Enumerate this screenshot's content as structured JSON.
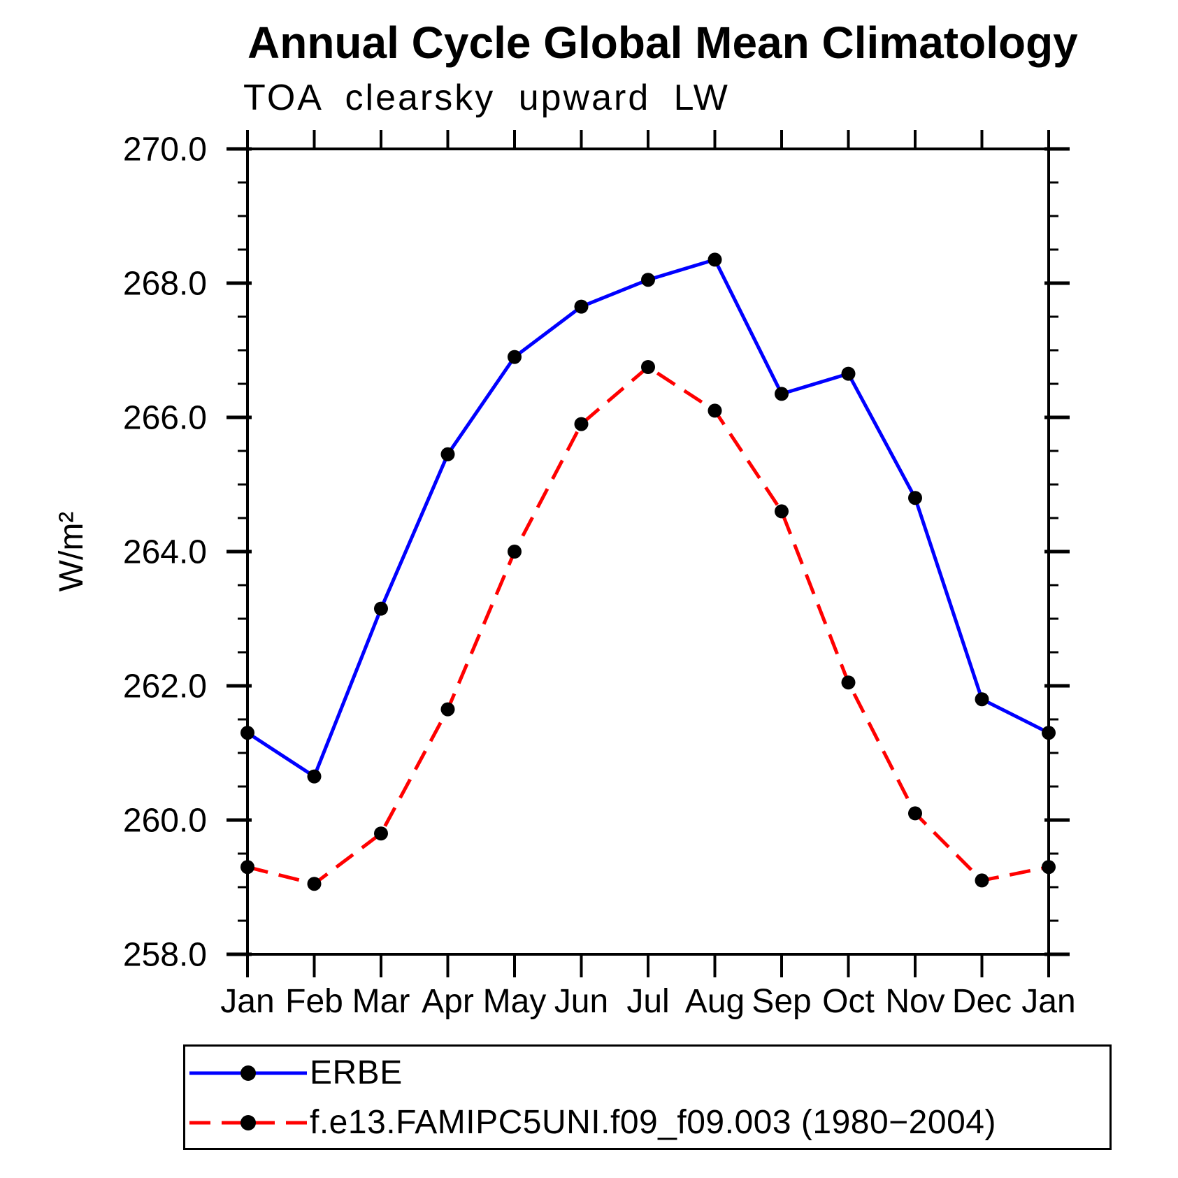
{
  "title": "Annual Cycle Global Mean Climatology",
  "subtitle": "TOA clearsky upward LW",
  "chart_data": {
    "type": "line",
    "title": "Annual Cycle Global Mean Climatology",
    "subtitle": "TOA clearsky upward LW",
    "xlabel": "",
    "ylabel": "W/m²",
    "categories": [
      "Jan",
      "Feb",
      "Mar",
      "Apr",
      "May",
      "Jun",
      "Jul",
      "Aug",
      "Sep",
      "Oct",
      "Nov",
      "Dec",
      "Jan"
    ],
    "ylim": [
      258.0,
      270.0
    ],
    "y_major_step": 2.0,
    "y_minor_step": 0.5,
    "y_tick_format_decimals": 1,
    "grid": false,
    "legend_position": "bottom-left-box",
    "frame_color": "#000000",
    "marker": {
      "shape": "circle",
      "color": "#000000"
    },
    "series": [
      {
        "name": "ERBE",
        "color": "#0000ff",
        "line_style": "solid",
        "values": [
          261.3,
          260.65,
          263.15,
          265.45,
          266.9,
          267.65,
          268.05,
          268.35,
          266.35,
          266.65,
          264.8,
          261.8,
          261.3
        ]
      },
      {
        "name": "f.e13.FAMIPC5UNI.f09_f09.003 (1980−2004)",
        "color": "#ff0000",
        "line_style": "dashed",
        "values": [
          259.3,
          259.05,
          259.8,
          261.65,
          264.0,
          265.9,
          266.75,
          266.1,
          264.6,
          262.05,
          260.1,
          259.1,
          259.3
        ]
      }
    ]
  }
}
